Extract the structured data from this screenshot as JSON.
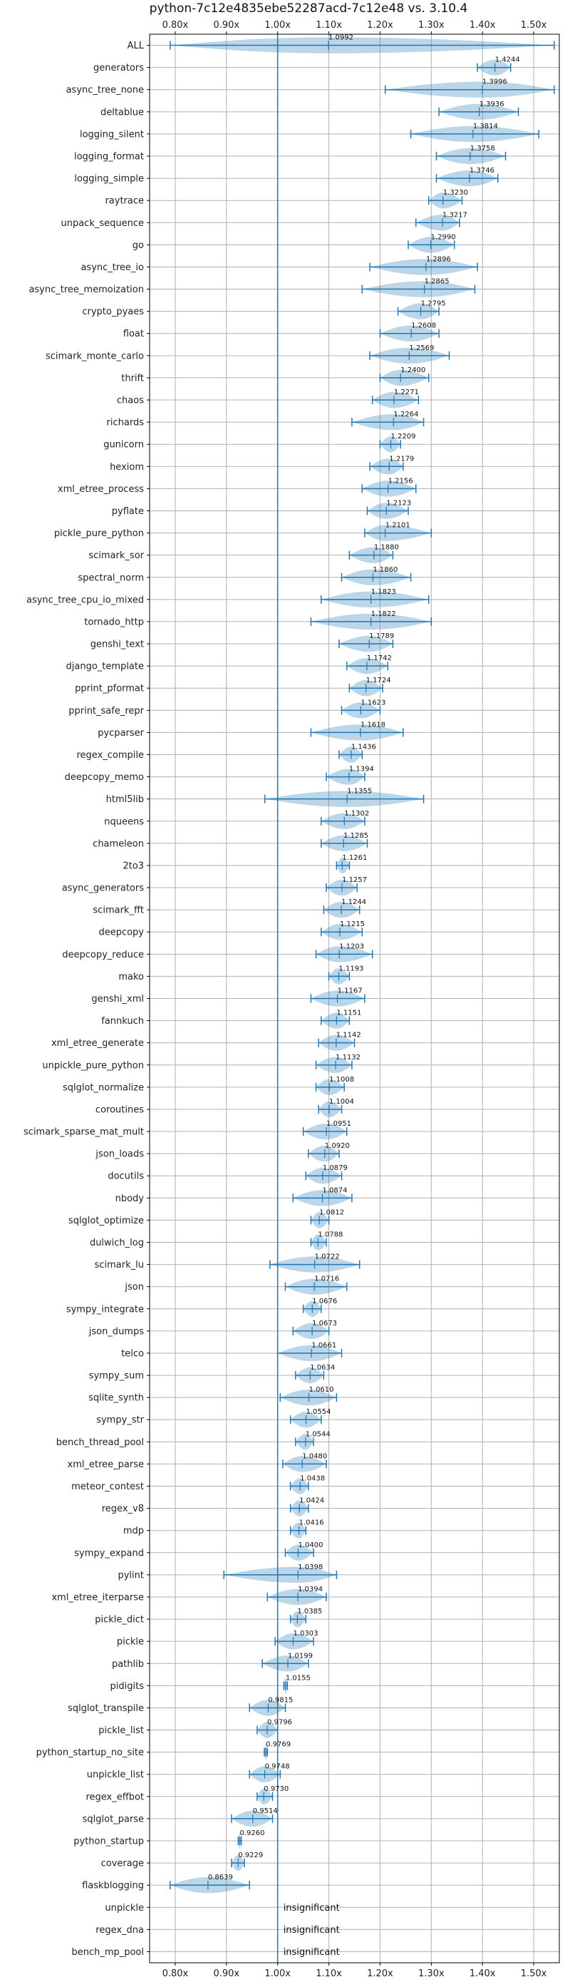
{
  "chart_data": {
    "type": "violin",
    "title": "python-7c12e4835ebe52287acd-7c12e48 vs. 3.10.4",
    "xlim": [
      0.75,
      1.55
    ],
    "x_ticks": [
      0.8,
      0.9,
      1.0,
      1.1,
      1.2,
      1.3,
      1.4,
      1.5
    ],
    "x_tick_labels": [
      "0.80x",
      "0.90x",
      "1.00x",
      "1.10x",
      "1.20x",
      "1.30x",
      "1.40x",
      "1.50x"
    ],
    "tick_positions": [
      "top",
      "bottom"
    ],
    "reference_line": 1.0,
    "grid": true,
    "color": "#1f77b4",
    "insignificant_label": "insignificant",
    "rows": [
      {
        "name": "ALL",
        "value": 1.0992,
        "label": "1.0992",
        "min": 0.79,
        "max": 1.54
      },
      {
        "name": "generators",
        "value": 1.4244,
        "label": "1.4244",
        "min": 1.39,
        "max": 1.455
      },
      {
        "name": "async_tree_none",
        "value": 1.3996,
        "label": "1.3996",
        "min": 1.21,
        "max": 1.54
      },
      {
        "name": "deltablue",
        "value": 1.3936,
        "label": "1.3936",
        "min": 1.315,
        "max": 1.47
      },
      {
        "name": "logging_silent",
        "value": 1.3814,
        "label": "1.3814",
        "min": 1.26,
        "max": 1.51
      },
      {
        "name": "logging_format",
        "value": 1.3758,
        "label": "1.3758",
        "min": 1.31,
        "max": 1.445
      },
      {
        "name": "logging_simple",
        "value": 1.3746,
        "label": "1.3746",
        "min": 1.31,
        "max": 1.43
      },
      {
        "name": "raytrace",
        "value": 1.323,
        "label": "1.3230",
        "min": 1.295,
        "max": 1.36
      },
      {
        "name": "unpack_sequence",
        "value": 1.3217,
        "label": "1.3217",
        "min": 1.27,
        "max": 1.355
      },
      {
        "name": "go",
        "value": 1.299,
        "label": "1.2990",
        "min": 1.255,
        "max": 1.345
      },
      {
        "name": "async_tree_io",
        "value": 1.2896,
        "label": "1.2896",
        "min": 1.18,
        "max": 1.39
      },
      {
        "name": "async_tree_memoization",
        "value": 1.2865,
        "label": "1.2865",
        "min": 1.165,
        "max": 1.385
      },
      {
        "name": "crypto_pyaes",
        "value": 1.2795,
        "label": "1.2795",
        "min": 1.235,
        "max": 1.315
      },
      {
        "name": "float",
        "value": 1.2608,
        "label": "1.2608",
        "min": 1.2,
        "max": 1.315
      },
      {
        "name": "scimark_monte_carlo",
        "value": 1.2569,
        "label": "1.2569",
        "min": 1.18,
        "max": 1.335
      },
      {
        "name": "thrift",
        "value": 1.24,
        "label": "1.2400",
        "min": 1.2,
        "max": 1.295
      },
      {
        "name": "chaos",
        "value": 1.2271,
        "label": "1.2271",
        "min": 1.185,
        "max": 1.275
      },
      {
        "name": "richards",
        "value": 1.2264,
        "label": "1.2264",
        "min": 1.145,
        "max": 1.285
      },
      {
        "name": "gunicorn",
        "value": 1.2209,
        "label": "1.2209",
        "min": 1.2,
        "max": 1.24
      },
      {
        "name": "hexiom",
        "value": 1.2179,
        "label": "1.2179",
        "min": 1.18,
        "max": 1.245
      },
      {
        "name": "xml_etree_process",
        "value": 1.2156,
        "label": "1.2156",
        "min": 1.165,
        "max": 1.27
      },
      {
        "name": "pyflate",
        "value": 1.2123,
        "label": "1.2123",
        "min": 1.175,
        "max": 1.255
      },
      {
        "name": "pickle_pure_python",
        "value": 1.2101,
        "label": "1.2101",
        "min": 1.17,
        "max": 1.3
      },
      {
        "name": "scimark_sor",
        "value": 1.188,
        "label": "1.1880",
        "min": 1.14,
        "max": 1.225
      },
      {
        "name": "spectral_norm",
        "value": 1.186,
        "label": "1.1860",
        "min": 1.125,
        "max": 1.26
      },
      {
        "name": "async_tree_cpu_io_mixed",
        "value": 1.1823,
        "label": "1.1823",
        "min": 1.085,
        "max": 1.295
      },
      {
        "name": "tornado_http",
        "value": 1.1822,
        "label": "1.1822",
        "min": 1.065,
        "max": 1.3
      },
      {
        "name": "genshi_text",
        "value": 1.1789,
        "label": "1.1789",
        "min": 1.12,
        "max": 1.225
      },
      {
        "name": "django_template",
        "value": 1.1742,
        "label": "1.1742",
        "min": 1.135,
        "max": 1.215
      },
      {
        "name": "pprint_pformat",
        "value": 1.1724,
        "label": "1.1724",
        "min": 1.14,
        "max": 1.205
      },
      {
        "name": "pprint_safe_repr",
        "value": 1.1623,
        "label": "1.1623",
        "min": 1.125,
        "max": 1.2
      },
      {
        "name": "pycparser",
        "value": 1.1618,
        "label": "1.1618",
        "min": 1.065,
        "max": 1.245
      },
      {
        "name": "regex_compile",
        "value": 1.1436,
        "label": "1.1436",
        "min": 1.12,
        "max": 1.165
      },
      {
        "name": "deepcopy_memo",
        "value": 1.1394,
        "label": "1.1394",
        "min": 1.095,
        "max": 1.17
      },
      {
        "name": "html5lib",
        "value": 1.1355,
        "label": "1.1355",
        "min": 0.975,
        "max": 1.285
      },
      {
        "name": "nqueens",
        "value": 1.1302,
        "label": "1.1302",
        "min": 1.085,
        "max": 1.17
      },
      {
        "name": "chameleon",
        "value": 1.1285,
        "label": "1.1285",
        "min": 1.085,
        "max": 1.175
      },
      {
        "name": "2to3",
        "value": 1.1261,
        "label": "1.1261",
        "min": 1.115,
        "max": 1.14
      },
      {
        "name": "async_generators",
        "value": 1.1257,
        "label": "1.1257",
        "min": 1.095,
        "max": 1.155
      },
      {
        "name": "scimark_fft",
        "value": 1.1244,
        "label": "1.1244",
        "min": 1.09,
        "max": 1.16
      },
      {
        "name": "deepcopy",
        "value": 1.1215,
        "label": "1.1215",
        "min": 1.085,
        "max": 1.165
      },
      {
        "name": "deepcopy_reduce",
        "value": 1.1203,
        "label": "1.1203",
        "min": 1.075,
        "max": 1.185
      },
      {
        "name": "mako",
        "value": 1.1193,
        "label": "1.1193",
        "min": 1.1,
        "max": 1.14
      },
      {
        "name": "genshi_xml",
        "value": 1.1167,
        "label": "1.1167",
        "min": 1.065,
        "max": 1.17
      },
      {
        "name": "fannkuch",
        "value": 1.1151,
        "label": "1.1151",
        "min": 1.085,
        "max": 1.14
      },
      {
        "name": "xml_etree_generate",
        "value": 1.1142,
        "label": "1.1142",
        "min": 1.08,
        "max": 1.15
      },
      {
        "name": "unpickle_pure_python",
        "value": 1.1132,
        "label": "1.1132",
        "min": 1.075,
        "max": 1.145
      },
      {
        "name": "sqlglot_normalize",
        "value": 1.1008,
        "label": "1.1008",
        "min": 1.075,
        "max": 1.13
      },
      {
        "name": "coroutines",
        "value": 1.1004,
        "label": "1.1004",
        "min": 1.08,
        "max": 1.125
      },
      {
        "name": "scimark_sparse_mat_mult",
        "value": 1.0951,
        "label": "1.0951",
        "min": 1.05,
        "max": 1.135
      },
      {
        "name": "json_loads",
        "value": 1.092,
        "label": "1.0920",
        "min": 1.06,
        "max": 1.12
      },
      {
        "name": "docutils",
        "value": 1.0879,
        "label": "1.0879",
        "min": 1.055,
        "max": 1.125
      },
      {
        "name": "nbody",
        "value": 1.0874,
        "label": "1.0874",
        "min": 1.03,
        "max": 1.145
      },
      {
        "name": "sqlglot_optimize",
        "value": 1.0812,
        "label": "1.0812",
        "min": 1.065,
        "max": 1.1
      },
      {
        "name": "dulwich_log",
        "value": 1.0788,
        "label": "1.0788",
        "min": 1.065,
        "max": 1.095
      },
      {
        "name": "scimark_lu",
        "value": 1.0722,
        "label": "1.0722",
        "min": 0.985,
        "max": 1.16
      },
      {
        "name": "json",
        "value": 1.0716,
        "label": "1.0716",
        "min": 1.015,
        "max": 1.135
      },
      {
        "name": "sympy_integrate",
        "value": 1.0676,
        "label": "1.0676",
        "min": 1.05,
        "max": 1.085
      },
      {
        "name": "json_dumps",
        "value": 1.0673,
        "label": "1.0673",
        "min": 1.03,
        "max": 1.1
      },
      {
        "name": "telco",
        "value": 1.0661,
        "label": "1.0661",
        "min": 1.0,
        "max": 1.125
      },
      {
        "name": "sympy_sum",
        "value": 1.0634,
        "label": "1.0634",
        "min": 1.035,
        "max": 1.09
      },
      {
        "name": "sqlite_synth",
        "value": 1.061,
        "label": "1.0610",
        "min": 1.005,
        "max": 1.115
      },
      {
        "name": "sympy_str",
        "value": 1.0554,
        "label": "1.0554",
        "min": 1.025,
        "max": 1.085
      },
      {
        "name": "bench_thread_pool",
        "value": 1.0544,
        "label": "1.0544",
        "min": 1.035,
        "max": 1.07
      },
      {
        "name": "xml_etree_parse",
        "value": 1.048,
        "label": "1.0480",
        "min": 1.01,
        "max": 1.095
      },
      {
        "name": "meteor_contest",
        "value": 1.0438,
        "label": "1.0438",
        "min": 1.025,
        "max": 1.06
      },
      {
        "name": "regex_v8",
        "value": 1.0424,
        "label": "1.0424",
        "min": 1.025,
        "max": 1.06
      },
      {
        "name": "mdp",
        "value": 1.0416,
        "label": "1.0416",
        "min": 1.025,
        "max": 1.055
      },
      {
        "name": "sympy_expand",
        "value": 1.04,
        "label": "1.0400",
        "min": 1.015,
        "max": 1.07
      },
      {
        "name": "pylint",
        "value": 1.0398,
        "label": "1.0398",
        "min": 0.895,
        "max": 1.115
      },
      {
        "name": "xml_etree_iterparse",
        "value": 1.0394,
        "label": "1.0394",
        "min": 0.98,
        "max": 1.095
      },
      {
        "name": "pickle_dict",
        "value": 1.0385,
        "label": "1.0385",
        "min": 1.025,
        "max": 1.055
      },
      {
        "name": "pickle",
        "value": 1.0303,
        "label": "1.0303",
        "min": 0.995,
        "max": 1.07
      },
      {
        "name": "pathlib",
        "value": 1.0199,
        "label": "1.0199",
        "min": 0.97,
        "max": 1.06
      },
      {
        "name": "pidigits",
        "value": 1.0155,
        "label": "1.0155",
        "min": 1.012,
        "max": 1.019
      },
      {
        "name": "sqlglot_transpile",
        "value": 0.9815,
        "label": "0.9815",
        "min": 0.945,
        "max": 1.015
      },
      {
        "name": "pickle_list",
        "value": 0.9796,
        "label": "0.9796",
        "min": 0.96,
        "max": 1.0
      },
      {
        "name": "python_startup_no_site",
        "value": 0.9769,
        "label": "0.9769",
        "min": 0.974,
        "max": 0.98
      },
      {
        "name": "unpickle_list",
        "value": 0.9748,
        "label": "0.9748",
        "min": 0.945,
        "max": 1.005
      },
      {
        "name": "regex_effbot",
        "value": 0.973,
        "label": "0.9730",
        "min": 0.96,
        "max": 0.99
      },
      {
        "name": "sqlglot_parse",
        "value": 0.9514,
        "label": "0.9514",
        "min": 0.91,
        "max": 0.99
      },
      {
        "name": "python_startup",
        "value": 0.926,
        "label": "0.9260",
        "min": 0.923,
        "max": 0.929
      },
      {
        "name": "coverage",
        "value": 0.9229,
        "label": "0.9229",
        "min": 0.91,
        "max": 0.935
      },
      {
        "name": "flaskblogging",
        "value": 0.8639,
        "label": "0.8639",
        "min": 0.79,
        "max": 0.945
      },
      {
        "name": "unpickle",
        "insignificant": true
      },
      {
        "name": "regex_dna",
        "insignificant": true
      },
      {
        "name": "bench_mp_pool",
        "insignificant": true
      }
    ]
  }
}
